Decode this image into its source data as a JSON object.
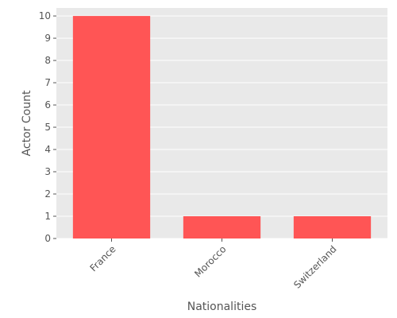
{
  "chart_data": {
    "type": "bar",
    "categories": [
      "France",
      "Morocco",
      "Switzerland"
    ],
    "values": [
      10,
      1,
      1
    ],
    "xlabel": "Nationalities",
    "ylabel": "Actor Count",
    "ylim": [
      0,
      10.36
    ],
    "yticks": [
      0,
      1,
      2,
      3,
      4,
      5,
      6,
      7,
      8,
      9,
      10
    ],
    "grid": true,
    "legend": "none",
    "bar_color": "#ff5555",
    "background_color": "#e9e9e9",
    "grid_color": "#ffffff"
  }
}
